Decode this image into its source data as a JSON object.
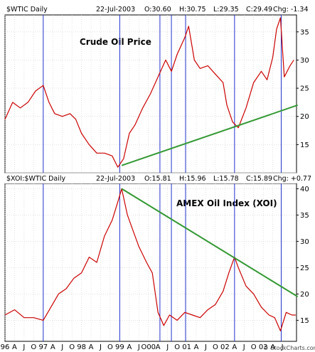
{
  "chart_data": [
    {
      "type": "line",
      "symbol": "$WTIC Daily",
      "header": {
        "date": "22-Jul-2003",
        "open": "O:30.60",
        "high": "H:30.75",
        "low": "L:29.35",
        "close": "C:29.49",
        "change": "Chg: -1.34"
      },
      "annotation": "Crude Oil Price",
      "ylim": [
        10,
        38
      ],
      "yticks": [
        15,
        20,
        25,
        30,
        35
      ],
      "series": [
        {
          "color": "#cc0000",
          "x": [
            1996.0,
            1996.2,
            1996.4,
            1996.6,
            1996.8,
            1997.0,
            1997.15,
            1997.3,
            1997.5,
            1997.7,
            1997.85,
            1998.0,
            1998.2,
            1998.4,
            1998.6,
            1998.8,
            1998.95,
            1999.1,
            1999.25,
            1999.4,
            1999.6,
            1999.8,
            2000.0,
            2000.2,
            2000.35,
            2000.5,
            2000.7,
            2000.8,
            2000.95,
            2001.1,
            2001.3,
            2001.5,
            2001.7,
            2001.8,
            2001.95,
            2002.1,
            2002.3,
            2002.5,
            2002.7,
            2002.85,
            2003.0,
            2003.1,
            2003.2,
            2003.3,
            2003.45,
            2003.55
          ],
          "values": [
            19.5,
            22.5,
            21.5,
            22.5,
            24.5,
            25.5,
            22.5,
            20.5,
            20.0,
            20.5,
            19.5,
            17.0,
            15.0,
            13.5,
            13.5,
            13.0,
            11.0,
            12.5,
            17.0,
            18.5,
            21.5,
            24.0,
            27.0,
            30.0,
            28.0,
            31.0,
            34.0,
            36.0,
            30.0,
            28.5,
            29.0,
            27.5,
            26.0,
            22.0,
            19.0,
            18.0,
            21.5,
            26.0,
            28.0,
            26.5,
            30.5,
            35.5,
            37.5,
            27.0,
            29.0,
            30.0
          ]
        }
      ],
      "trendline": {
        "x": [
          1999.05,
          2003.65
        ],
        "values": [
          11.3,
          22.0
        ],
        "color": "#339933"
      }
    },
    {
      "type": "line",
      "symbol": "$XOI:$WTIC Daily",
      "header": {
        "date": "22-Jul-2003",
        "open": "O:15.81",
        "high": "H:15.96",
        "low": "L:15.78",
        "close": "C:15.89",
        "change": "Chg: +0.77"
      },
      "annotation": "AMEX Oil Index (XOI)",
      "ylim": [
        11,
        41
      ],
      "yticks": [
        15,
        20,
        25,
        30,
        35,
        40
      ],
      "series": [
        {
          "color": "#cc0000",
          "x": [
            1996.0,
            1996.25,
            1996.5,
            1996.75,
            1997.0,
            1997.2,
            1997.4,
            1997.6,
            1997.8,
            1998.0,
            1998.2,
            1998.4,
            1998.6,
            1998.8,
            1998.95,
            1999.05,
            1999.2,
            1999.35,
            1999.5,
            1999.7,
            1999.85,
            2000.0,
            2000.15,
            2000.3,
            2000.5,
            2000.7,
            2000.9,
            2001.1,
            2001.3,
            2001.5,
            2001.7,
            2001.85,
            2002.0,
            2002.1,
            2002.3,
            2002.5,
            2002.7,
            2002.9,
            2003.05,
            2003.2,
            2003.35,
            2003.5,
            2003.6
          ],
          "values": [
            16.0,
            17.0,
            15.5,
            15.5,
            15.0,
            17.5,
            20.0,
            21.0,
            23.0,
            24.0,
            27.0,
            26.0,
            31.0,
            34.0,
            37.5,
            40.0,
            35.0,
            32.0,
            29.0,
            26.0,
            24.0,
            16.5,
            14.0,
            16.0,
            15.0,
            16.5,
            16.0,
            15.5,
            17.0,
            18.0,
            20.5,
            24.0,
            27.0,
            25.0,
            21.5,
            20.0,
            17.5,
            16.0,
            15.5,
            13.0,
            16.5,
            16.0,
            16.0
          ]
        }
      ],
      "trendline": {
        "x": [
          1999.05,
          2003.65
        ],
        "values": [
          40.0,
          19.5
        ],
        "color": "#339933"
      }
    }
  ],
  "x_ticks": [
    "96",
    "A",
    "J",
    "O",
    "97",
    "A",
    "J",
    "O",
    "98",
    "A",
    "J",
    "O",
    "99",
    "A",
    "J",
    "O00",
    "A",
    "J",
    "O",
    "01",
    "A",
    "J",
    "O",
    "02",
    "A",
    "J",
    "O",
    "03",
    "A",
    "J"
  ],
  "x_tick_start": 1996.0,
  "x_tick_step": 0.25,
  "x_range": [
    1996.0,
    2003.62
  ],
  "vertical_markers": [
    1997.0,
    1999.0,
    2000.05,
    2000.35,
    2000.72,
    2002.0,
    2003.22
  ],
  "marker_color": "#2233cc",
  "grid": true,
  "watermark": "© StockCharts.com"
}
